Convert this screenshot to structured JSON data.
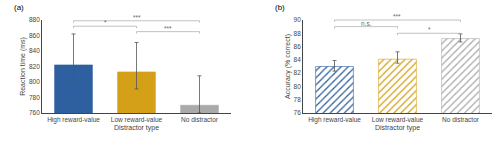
{
  "chart_data": [
    {
      "type": "bar",
      "title": "(a)",
      "categories": [
        "High reward-value",
        "Low reward-value",
        "No distractor"
      ],
      "values": [
        822,
        813,
        770
      ],
      "errors_up": [
        40,
        38,
        38
      ],
      "errors_down": [
        22,
        22,
        10
      ],
      "colors": [
        "#2e5f9e",
        "#d4a017",
        "#aaaaaa"
      ],
      "xlabel": "Distractor type",
      "ylabel": "Reaction time (ms)",
      "ylim": [
        760,
        880
      ],
      "yticks": [
        760,
        780,
        800,
        820,
        840,
        860,
        880
      ],
      "grid": false,
      "annotations": [
        {
          "text": "*",
          "from": "High reward-value",
          "to": "Low reward-value",
          "y": 872
        },
        {
          "text": "***",
          "from": "High reward-value",
          "to": "No distractor",
          "y": 879
        },
        {
          "text": "***",
          "from": "Low reward-value",
          "to": "No distractor",
          "y": 865
        }
      ]
    },
    {
      "type": "bar",
      "title": "(b)",
      "categories": [
        "High reward-value",
        "Low reward-value",
        "No distractor"
      ],
      "values": [
        83.0,
        84.1,
        87.2
      ],
      "errors_up": [
        0.9,
        1.1,
        0.7
      ],
      "errors_down": [
        0.7,
        0.6,
        0.5
      ],
      "colors": [
        "#2e5f9e",
        "#d4a017",
        "#aaaaaa"
      ],
      "marker": "hatch",
      "xlabel": "Distractor type",
      "ylabel": "Accuracy (% correct)",
      "ylim": [
        76,
        90
      ],
      "yticks": [
        76,
        78,
        80,
        82,
        84,
        86,
        88,
        90
      ],
      "grid": false,
      "annotations": [
        {
          "text": "n.s.",
          "from": "High reward-value",
          "to": "Low reward-value",
          "y": 89.0
        },
        {
          "text": "***",
          "from": "High reward-value",
          "to": "No distractor",
          "y": 90.0
        },
        {
          "text": "*",
          "from": "Low reward-value",
          "to": "No distractor",
          "y": 88.0
        }
      ]
    }
  ]
}
